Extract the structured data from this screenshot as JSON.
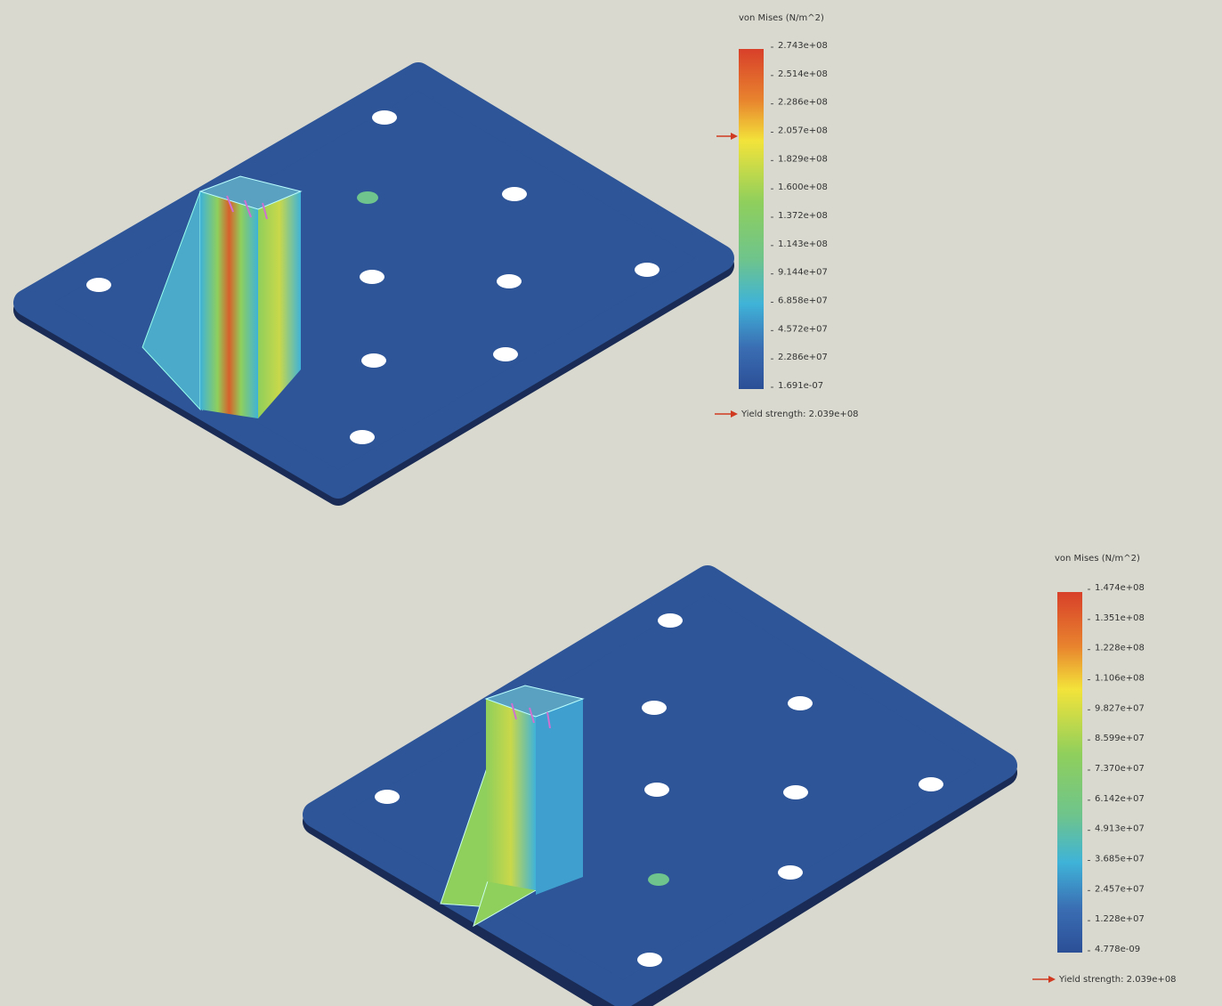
{
  "plots": [
    {
      "legend_title": "von Mises (N/m^2)",
      "legend_labels": [
        "2.743e+08",
        "2.514e+08",
        "2.286e+08",
        "2.057e+08",
        "1.829e+08",
        "1.600e+08",
        "1.372e+08",
        "1.143e+08",
        "9.144e+07",
        "6.858e+07",
        "4.572e+07",
        "2.286e+07",
        "1.691e-07"
      ],
      "yield_label": "Yield strength: 2.039e+08"
    },
    {
      "legend_title": "von Mises (N/m^2)",
      "legend_labels": [
        "1.474e+08",
        "1.351e+08",
        "1.228e+08",
        "1.106e+08",
        "9.827e+07",
        "8.599e+07",
        "7.370e+07",
        "6.142e+07",
        "4.913e+07",
        "3.685e+07",
        "2.457e+07",
        "1.228e+07",
        "4.778e-09"
      ],
      "yield_label": "Yield strength: 2.039e+08"
    }
  ]
}
